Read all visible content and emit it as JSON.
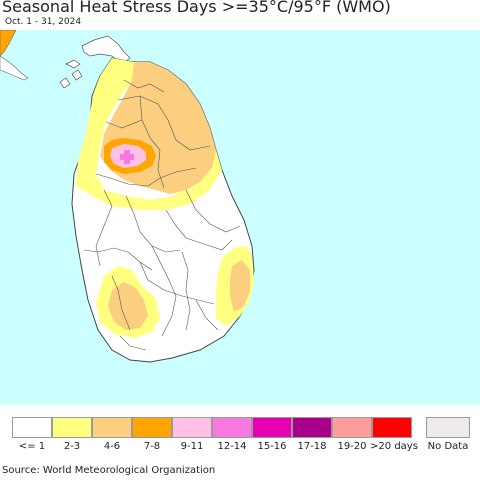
{
  "header": {
    "title": "Seasonal Heat Stress Days >=35°C/95°F (WMO)",
    "date_range": "Oct. 1 - 31, 2024"
  },
  "map": {
    "region": "Sri Lanka",
    "sea_color": "#ccffff",
    "land_color": "#ffffff",
    "border_color": "#555555"
  },
  "legend": {
    "items": [
      {
        "label": "<= 1",
        "color": "#ffffff"
      },
      {
        "label": "2-3",
        "color": "#ffff80"
      },
      {
        "label": "4-6",
        "color": "#fccf80"
      },
      {
        "label": "7-8",
        "color": "#ffa500"
      },
      {
        "label": "9-11",
        "color": "#ffc0e8"
      },
      {
        "label": "12-14",
        "color": "#f878e0"
      },
      {
        "label": "15-16",
        "color": "#e800b0"
      },
      {
        "label": "17-18",
        "color": "#a8008c"
      },
      {
        "label": "19-20",
        "color": "#ff9c9c"
      },
      {
        "label": ">20 days",
        "color": "#ff0000"
      }
    ],
    "no_data": {
      "label": "No Data",
      "color": "#eeeaee"
    }
  },
  "footer": {
    "source": "Source: World Meteorological Organization"
  }
}
